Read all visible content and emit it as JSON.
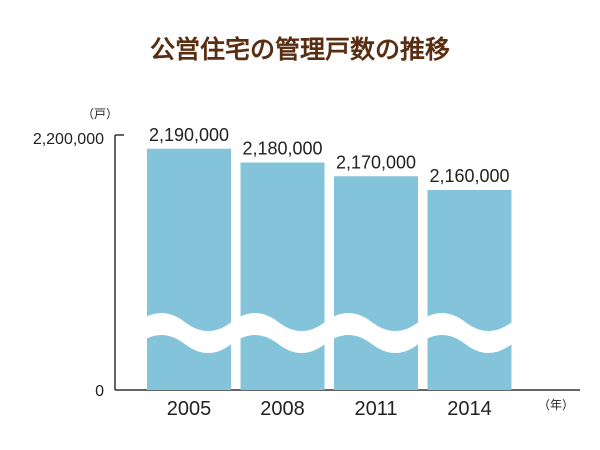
{
  "chart_data": {
    "type": "bar",
    "title": "公営住宅の管理戸数の推移",
    "y_unit": "（戸）",
    "x_unit": "（年）",
    "categories": [
      "2005",
      "2008",
      "2011",
      "2014"
    ],
    "values": [
      2190000,
      2180000,
      2170000,
      2160000
    ],
    "value_labels": [
      "2,190,000",
      "2,180,000",
      "2,170,000",
      "2,160,000"
    ],
    "y_ticks": [
      "0",
      "2,200,000"
    ],
    "ylim": [
      0,
      2200000
    ],
    "axis_break": true,
    "grid": false,
    "legend": "none",
    "colors": {
      "bar": "#84c4da",
      "title": "#5a2e12",
      "axis": "#333333"
    }
  }
}
